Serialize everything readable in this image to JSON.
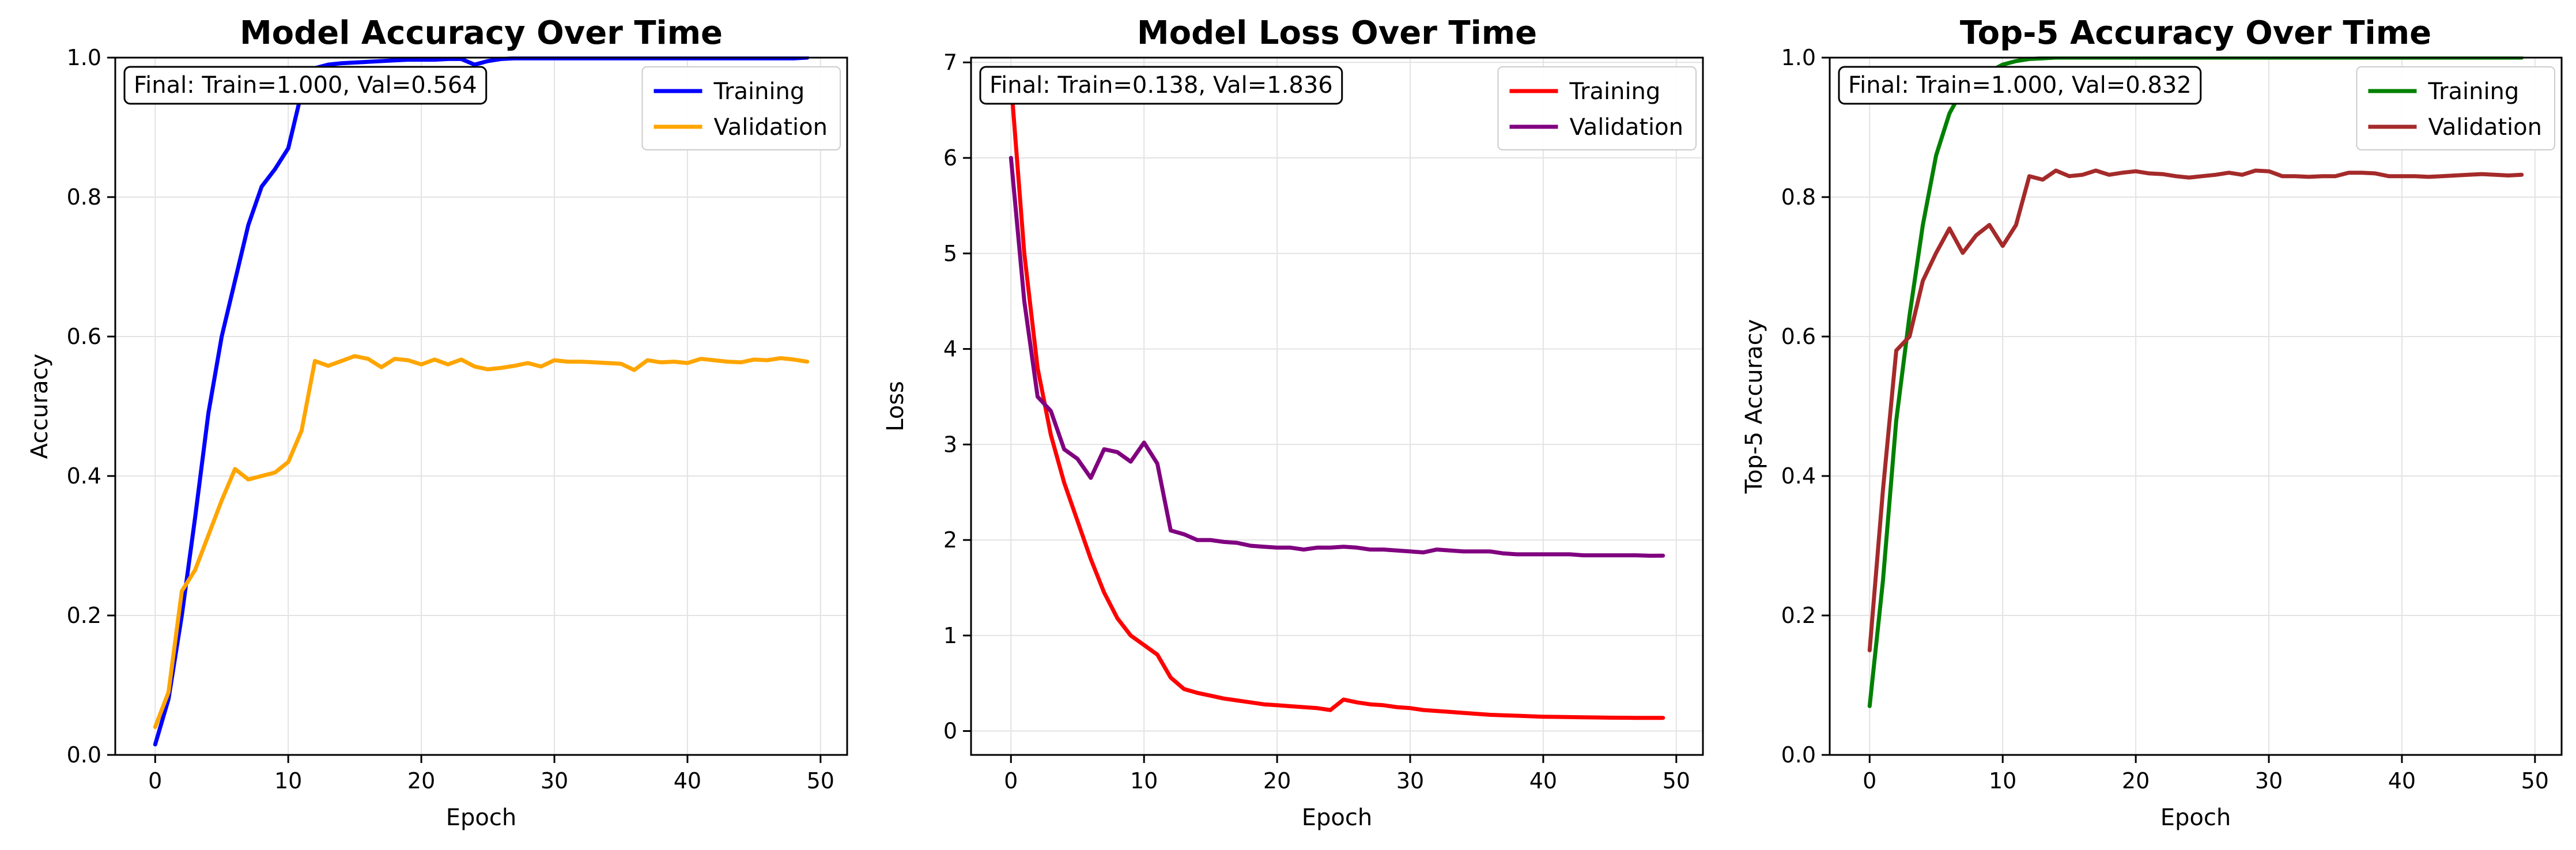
{
  "figure": {
    "background": "#ffffff"
  },
  "chart_data": [
    {
      "type": "line",
      "title": "Model Accuracy Over Time",
      "xlabel": "Epoch",
      "ylabel": "Accuracy",
      "xlim": [
        -3,
        52
      ],
      "ylim": [
        0,
        1.0
      ],
      "xticks": [
        0,
        10,
        20,
        30,
        40,
        50
      ],
      "yticks": [
        0.0,
        0.2,
        0.4,
        0.6,
        0.8,
        1.0
      ],
      "ytick_format": 1,
      "grid": true,
      "legend_position": "upper right",
      "annotation": "Final: Train=1.000, Val=0.564",
      "x": [
        0,
        1,
        2,
        3,
        4,
        5,
        6,
        7,
        8,
        9,
        10,
        11,
        12,
        13,
        14,
        15,
        16,
        17,
        18,
        19,
        20,
        21,
        22,
        23,
        24,
        25,
        26,
        27,
        28,
        29,
        30,
        31,
        32,
        33,
        34,
        35,
        36,
        37,
        38,
        39,
        40,
        41,
        42,
        43,
        44,
        45,
        46,
        47,
        48,
        49
      ],
      "series": [
        {
          "name": "Training",
          "color": "#0000ff",
          "values": [
            0.015,
            0.08,
            0.2,
            0.34,
            0.49,
            0.6,
            0.68,
            0.76,
            0.815,
            0.84,
            0.87,
            0.95,
            0.985,
            0.99,
            0.992,
            0.993,
            0.994,
            0.995,
            0.996,
            0.997,
            0.997,
            0.997,
            0.998,
            0.998,
            0.99,
            0.995,
            0.998,
            0.999,
            0.999,
            0.999,
            0.999,
            0.999,
            0.999,
            0.999,
            0.999,
            0.999,
            0.999,
            0.999,
            0.999,
            0.999,
            0.999,
            0.999,
            0.999,
            0.999,
            0.999,
            0.999,
            0.999,
            0.999,
            0.999,
            1.0
          ]
        },
        {
          "name": "Validation",
          "color": "#ffa500",
          "values": [
            0.04,
            0.09,
            0.235,
            0.265,
            0.315,
            0.365,
            0.41,
            0.395,
            0.4,
            0.405,
            0.42,
            0.465,
            0.565,
            0.558,
            0.565,
            0.572,
            0.568,
            0.556,
            0.568,
            0.566,
            0.56,
            0.567,
            0.56,
            0.567,
            0.557,
            0.553,
            0.555,
            0.558,
            0.562,
            0.557,
            0.566,
            0.564,
            0.564,
            0.563,
            0.562,
            0.561,
            0.552,
            0.566,
            0.563,
            0.564,
            0.562,
            0.568,
            0.566,
            0.564,
            0.563,
            0.567,
            0.566,
            0.569,
            0.567,
            0.564
          ]
        }
      ]
    },
    {
      "type": "line",
      "title": "Model Loss Over Time",
      "xlabel": "Epoch",
      "ylabel": "Loss",
      "xlim": [
        -3,
        52
      ],
      "ylim": [
        -0.25,
        7.05
      ],
      "xticks": [
        0,
        10,
        20,
        30,
        40,
        50
      ],
      "yticks": [
        0,
        1,
        2,
        3,
        4,
        5,
        6,
        7
      ],
      "ytick_format": 0,
      "grid": true,
      "legend_position": "upper right",
      "annotation": "Final: Train=0.138, Val=1.836",
      "x": [
        0,
        1,
        2,
        3,
        4,
        5,
        6,
        7,
        8,
        9,
        10,
        11,
        12,
        13,
        14,
        15,
        16,
        17,
        18,
        19,
        20,
        21,
        22,
        23,
        24,
        25,
        26,
        27,
        28,
        29,
        30,
        31,
        32,
        33,
        34,
        35,
        36,
        37,
        38,
        39,
        40,
        41,
        42,
        43,
        44,
        45,
        46,
        47,
        48,
        49
      ],
      "series": [
        {
          "name": "Training",
          "color": "#ff0000",
          "values": [
            6.8,
            5.0,
            3.8,
            3.1,
            2.6,
            2.2,
            1.8,
            1.45,
            1.18,
            1.0,
            0.9,
            0.8,
            0.56,
            0.44,
            0.4,
            0.37,
            0.34,
            0.32,
            0.3,
            0.28,
            0.27,
            0.26,
            0.25,
            0.24,
            0.22,
            0.33,
            0.3,
            0.28,
            0.27,
            0.25,
            0.24,
            0.22,
            0.21,
            0.2,
            0.19,
            0.18,
            0.17,
            0.165,
            0.16,
            0.155,
            0.15,
            0.148,
            0.146,
            0.144,
            0.142,
            0.14,
            0.139,
            0.138,
            0.138,
            0.138
          ]
        },
        {
          "name": "Validation",
          "color": "#800080",
          "values": [
            6.0,
            4.5,
            3.5,
            3.35,
            2.95,
            2.85,
            2.65,
            2.95,
            2.92,
            2.82,
            3.02,
            2.8,
            2.1,
            2.06,
            2.0,
            2.0,
            1.98,
            1.97,
            1.94,
            1.93,
            1.92,
            1.92,
            1.9,
            1.92,
            1.92,
            1.93,
            1.92,
            1.9,
            1.9,
            1.89,
            1.88,
            1.87,
            1.9,
            1.89,
            1.88,
            1.88,
            1.88,
            1.86,
            1.85,
            1.85,
            1.85,
            1.85,
            1.85,
            1.84,
            1.84,
            1.84,
            1.84,
            1.84,
            1.835,
            1.836
          ]
        }
      ]
    },
    {
      "type": "line",
      "title": "Top-5 Accuracy Over Time",
      "xlabel": "Epoch",
      "ylabel": "Top-5 Accuracy",
      "xlim": [
        -3,
        52
      ],
      "ylim": [
        0,
        1.0
      ],
      "xticks": [
        0,
        10,
        20,
        30,
        40,
        50
      ],
      "yticks": [
        0.0,
        0.2,
        0.4,
        0.6,
        0.8,
        1.0
      ],
      "ytick_format": 1,
      "grid": true,
      "legend_position": "upper right",
      "annotation": "Final: Train=1.000, Val=0.832",
      "x": [
        0,
        1,
        2,
        3,
        4,
        5,
        6,
        7,
        8,
        9,
        10,
        11,
        12,
        13,
        14,
        15,
        16,
        17,
        18,
        19,
        20,
        21,
        22,
        23,
        24,
        25,
        26,
        27,
        28,
        29,
        30,
        31,
        32,
        33,
        34,
        35,
        36,
        37,
        38,
        39,
        40,
        41,
        42,
        43,
        44,
        45,
        46,
        47,
        48,
        49
      ],
      "series": [
        {
          "name": "Training",
          "color": "#008000",
          "values": [
            0.07,
            0.25,
            0.48,
            0.63,
            0.76,
            0.86,
            0.92,
            0.955,
            0.97,
            0.98,
            0.99,
            0.995,
            0.998,
            0.999,
            1.0,
            1.0,
            1.0,
            1.0,
            1.0,
            1.0,
            1.0,
            1.0,
            1.0,
            1.0,
            1.0,
            1.0,
            1.0,
            1.0,
            1.0,
            1.0,
            1.0,
            1.0,
            1.0,
            1.0,
            1.0,
            1.0,
            1.0,
            1.0,
            1.0,
            1.0,
            1.0,
            1.0,
            1.0,
            1.0,
            1.0,
            1.0,
            1.0,
            1.0,
            1.0,
            1.0
          ]
        },
        {
          "name": "Validation",
          "color": "#a52a2a",
          "values": [
            0.15,
            0.38,
            0.58,
            0.6,
            0.68,
            0.72,
            0.755,
            0.72,
            0.745,
            0.76,
            0.73,
            0.76,
            0.83,
            0.825,
            0.838,
            0.83,
            0.832,
            0.838,
            0.832,
            0.835,
            0.837,
            0.834,
            0.833,
            0.83,
            0.828,
            0.83,
            0.832,
            0.835,
            0.832,
            0.838,
            0.837,
            0.83,
            0.83,
            0.829,
            0.83,
            0.83,
            0.835,
            0.835,
            0.834,
            0.83,
            0.83,
            0.83,
            0.829,
            0.83,
            0.831,
            0.832,
            0.833,
            0.832,
            0.831,
            0.832
          ]
        }
      ]
    }
  ]
}
